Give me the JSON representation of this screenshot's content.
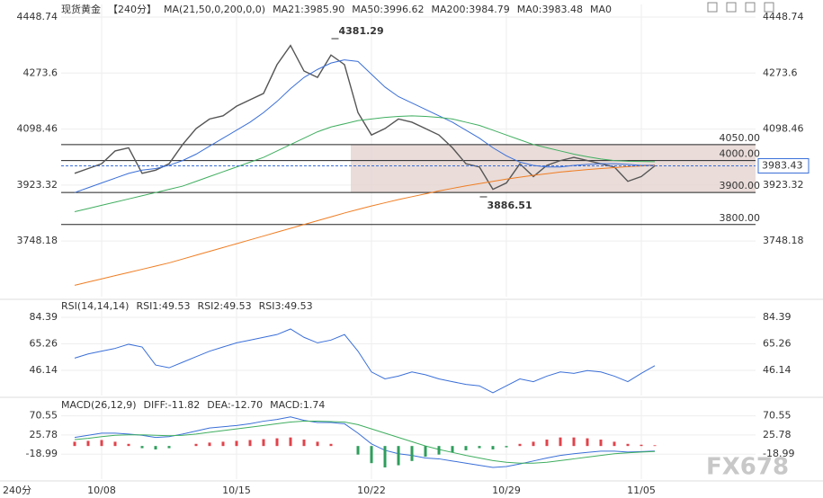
{
  "period_label": "240分",
  "watermark": "FX678",
  "chart_data": [
    {
      "type": "line",
      "title": "现货黄金",
      "subtitle": "【240分】",
      "indicator": "MA(21,50,0,200,0,0)",
      "categories": [
        null,
        null,
        "10/08",
        null,
        null,
        null,
        null,
        null,
        null,
        null,
        null,
        null,
        "10/15",
        null,
        null,
        null,
        null,
        null,
        null,
        null,
        null,
        null,
        "10/22",
        null,
        null,
        null,
        null,
        null,
        null,
        null,
        null,
        null,
        "10/29",
        null,
        null,
        null,
        null,
        null,
        null,
        null,
        null,
        null,
        "11/05",
        null
      ],
      "price": {
        "color": "#555555",
        "values": [
          3960,
          3975,
          3990,
          4030,
          4040,
          3960,
          3970,
          3990,
          4050,
          4100,
          4130,
          4140,
          4170,
          4190,
          4210,
          4300,
          4360,
          4280,
          4260,
          4330,
          4300,
          4150,
          4080,
          4100,
          4130,
          4120,
          4100,
          4080,
          4040,
          3990,
          3980,
          3910,
          3930,
          3990,
          3950,
          3985,
          4000,
          4010,
          4000,
          3990,
          3980,
          3935,
          3950,
          3983.43
        ]
      },
      "series": [
        {
          "name": "MA21:3985.90",
          "color": "#3a6fd8",
          "values": [
            3900,
            3915,
            3930,
            3945,
            3960,
            3970,
            3975,
            3985,
            4000,
            4020,
            4045,
            4070,
            4095,
            4120,
            4150,
            4185,
            4225,
            4260,
            4285,
            4305,
            4315,
            4310,
            4270,
            4230,
            4200,
            4180,
            4160,
            4140,
            4120,
            4095,
            4070,
            4040,
            4015,
            3995,
            3985,
            3980,
            3980,
            3985,
            3988,
            3990,
            3990,
            3988,
            3985,
            3985.9
          ]
        },
        {
          "name": "MA50:3996.62",
          "color": "#3fae5f",
          "values": [
            3840,
            3850,
            3860,
            3870,
            3880,
            3890,
            3900,
            3910,
            3920,
            3935,
            3950,
            3965,
            3980,
            3995,
            4010,
            4030,
            4050,
            4070,
            4090,
            4105,
            4115,
            4125,
            4130,
            4135,
            4138,
            4140,
            4138,
            4135,
            4130,
            4120,
            4110,
            4095,
            4080,
            4065,
            4050,
            4040,
            4030,
            4020,
            4012,
            4005,
            4000,
            3998,
            3997,
            3996.62
          ]
        },
        {
          "name": "MA200:3984.79",
          "color": "#f07d22",
          "values": [
            3610,
            3620,
            3630,
            3640,
            3650,
            3660,
            3670,
            3680,
            3692,
            3704,
            3716,
            3728,
            3740,
            3752,
            3764,
            3776,
            3788,
            3800,
            3812,
            3824,
            3836,
            3847,
            3858,
            3868,
            3878,
            3887,
            3896,
            3905,
            3913,
            3921,
            3928,
            3935,
            3942,
            3948,
            3954,
            3959,
            3964,
            3968,
            3972,
            3975,
            3978,
            3981,
            3983,
            3984.79
          ]
        }
      ],
      "legend_extra": [
        {
          "name": "MA0:3983.48",
          "color": "#7a6fd8"
        },
        {
          "name": "MA0",
          "color": "#e79ad6"
        }
      ],
      "ylim": [
        3574.4,
        4488.1
      ],
      "yticks": [
        4448.74,
        4273.6,
        4098.46,
        3923.32,
        3748.18
      ],
      "levels": [
        {
          "value": 4050,
          "label": "4050.00"
        },
        {
          "value": 4000,
          "label": "4000.00"
        },
        {
          "value": 3900,
          "label": "3900.00"
        },
        {
          "value": 3800,
          "label": "3800.00"
        }
      ],
      "last_price": {
        "value": 3983.43,
        "label": "3983.43"
      },
      "annotations": [
        {
          "value": 4381.29,
          "label": "4381.29",
          "color": "#e0434b"
        },
        {
          "value": 3886.51,
          "label": "3886.51",
          "color": "#2e9e5b"
        }
      ],
      "grid": true
    },
    {
      "type": "line",
      "title": "RSI(14,14,14)",
      "series": [
        {
          "name": "RSI1:49.53",
          "color": "#3a6fd8",
          "values": [
            55,
            58,
            60,
            62,
            65,
            63,
            50,
            48,
            52,
            56,
            60,
            63,
            66,
            68,
            70,
            72,
            76,
            70,
            66,
            68,
            72,
            60,
            45,
            40,
            42,
            45,
            43,
            40,
            38,
            36,
            35,
            30,
            35,
            40,
            38,
            42,
            45,
            44,
            46,
            45,
            42,
            38,
            44,
            49.53
          ]
        }
      ],
      "legend_extra": [
        {
          "name": "RSI2:49.53",
          "color": "#2fa7a7"
        },
        {
          "name": "RSI3:49.53",
          "color": "#3fae5f"
        }
      ],
      "ylim": [
        28,
        96.1
      ],
      "yticks": [
        84.39,
        65.26,
        46.14
      ],
      "grid": true
    },
    {
      "type": "macd",
      "title": "MACD(26,12,9)",
      "series": [
        {
          "name": "DIFF:-11.82",
          "color": "#3a6fd8",
          "values": [
            20,
            25,
            30,
            30,
            28,
            25,
            20,
            22,
            28,
            35,
            42,
            45,
            48,
            52,
            58,
            62,
            68,
            60,
            55,
            55,
            52,
            30,
            5,
            -10,
            -18,
            -22,
            -28,
            -30,
            -35,
            -40,
            -45,
            -50,
            -48,
            -42,
            -35,
            -28,
            -22,
            -18,
            -15,
            -12,
            -12,
            -14,
            -13,
            -11.82
          ]
        },
        {
          "name": "DEA:-12.70",
          "color": "#3fae5f",
          "values": [
            15,
            18,
            22,
            25,
            26,
            26,
            25,
            24,
            25,
            28,
            32,
            36,
            40,
            44,
            48,
            52,
            56,
            58,
            58,
            57,
            56,
            50,
            40,
            30,
            20,
            10,
            0,
            -8,
            -15,
            -22,
            -28,
            -34,
            -38,
            -40,
            -40,
            -38,
            -34,
            -30,
            -26,
            -22,
            -18,
            -16,
            -14,
            -12.7
          ]
        }
      ],
      "histogram": {
        "name": "MACD:1.74",
        "color": "#e0434b",
        "up_color": "#e0434b",
        "down_color": "#2e9e5b",
        "values": [
          10,
          12,
          14,
          10,
          5,
          -5,
          -8,
          -5,
          0,
          5,
          8,
          10,
          12,
          14,
          16,
          18,
          20,
          15,
          10,
          5,
          0,
          -20,
          -40,
          -50,
          -45,
          -35,
          -25,
          -20,
          -15,
          -10,
          -5,
          -8,
          -3,
          5,
          10,
          15,
          20,
          20,
          18,
          15,
          10,
          5,
          3,
          1.74
        ]
      },
      "ylim": [
        -77.4,
        107.5
      ],
      "yticks": [
        70.55,
        25.78,
        -18.99
      ],
      "grid": true
    }
  ]
}
